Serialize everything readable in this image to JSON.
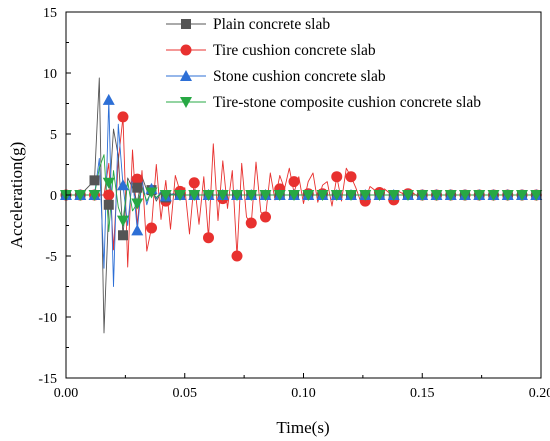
{
  "chart_data": {
    "type": "line",
    "xlabel": "Time(s)",
    "ylabel": "Acceleration(g)",
    "xlim": [
      0,
      0.2
    ],
    "ylim": [
      -15,
      15
    ],
    "xticks": [
      "0.00",
      "0.05",
      "0.10",
      "0.15",
      "0.20"
    ],
    "yticks": [
      "15",
      "10",
      "5",
      "0",
      "-5",
      "-10",
      "-15"
    ],
    "grid": false,
    "legend_position": "top-right",
    "series": [
      {
        "name": "Plain concrete slab",
        "color": "#555555",
        "marker": "square",
        "x": [
          0,
          0.006,
          0.012,
          0.014,
          0.016,
          0.018,
          0.02,
          0.022,
          0.024,
          0.026,
          0.028,
          0.03,
          0.032,
          0.034,
          0.036,
          0.038,
          0.04,
          0.042,
          0.045,
          0.05,
          0.06,
          0.2
        ],
        "y": [
          0,
          0,
          1.2,
          9.6,
          -11.3,
          -0.8,
          5.4,
          3.2,
          -3.3,
          1.4,
          0.6,
          -0.6,
          1.5,
          0.4,
          0.6,
          -0.5,
          0.2,
          -0.3,
          0.1,
          0,
          0,
          0
        ],
        "markers": [
          [
            0.0,
            0
          ],
          [
            0.006,
            0
          ],
          [
            0.012,
            1.2
          ],
          [
            0.018,
            -0.8
          ],
          [
            0.024,
            -3.3
          ],
          [
            0.03,
            0.6
          ],
          [
            0.036,
            0.4
          ],
          [
            0.042,
            -0.2
          ],
          [
            0.048,
            0
          ],
          [
            0.054,
            0
          ]
        ]
      },
      {
        "name": "Tire cushion concrete slab",
        "color": "#e8312f",
        "marker": "circle",
        "x": [
          0,
          0.016,
          0.018,
          0.02,
          0.022,
          0.024,
          0.026,
          0.028,
          0.03,
          0.032,
          0.034,
          0.036,
          0.038,
          0.04,
          0.042,
          0.044,
          0.046,
          0.048,
          0.05,
          0.052,
          0.054,
          0.056,
          0.058,
          0.06,
          0.062,
          0.064,
          0.066,
          0.068,
          0.07,
          0.072,
          0.074,
          0.076,
          0.078,
          0.08,
          0.082,
          0.084,
          0.086,
          0.088,
          0.09,
          0.092,
          0.094,
          0.096,
          0.098,
          0.1,
          0.102,
          0.104,
          0.106,
          0.108,
          0.11,
          0.112,
          0.114,
          0.116,
          0.118,
          0.12,
          0.122,
          0.124,
          0.126,
          0.128,
          0.13,
          0.132,
          0.134,
          0.136,
          0.138,
          0.14,
          0.142,
          0.144,
          0.146,
          0.148,
          0.15,
          0.2
        ],
        "y": [
          0,
          0,
          2.6,
          -4.5,
          2.8,
          6.4,
          -5.9,
          3.7,
          -2.5,
          2.0,
          -4.6,
          -2.7,
          2.5,
          -2.0,
          1.2,
          -2.8,
          1.6,
          0.3,
          0.6,
          -3.2,
          1.1,
          -2.4,
          1.5,
          -3.5,
          4.2,
          -2.1,
          2.8,
          -1.1,
          2.0,
          -5.0,
          2.6,
          -1.8,
          -2.4,
          2.7,
          -1.4,
          -1.8,
          1.8,
          -0.4,
          1.6,
          0.5,
          2.2,
          0.2,
          1.5,
          -0.7,
          1.1,
          1.8,
          -0.6,
          0.8,
          1.1,
          -0.9,
          1.5,
          -0.5,
          2.2,
          1.5,
          0.6,
          -0.5,
          -0.4,
          0.7,
          0.4,
          -0.2,
          0.5,
          0.2,
          -0.4,
          0.3,
          0.1,
          -0.2,
          0.2,
          -0.1,
          0,
          0
        ],
        "markers": [
          [
            0.0,
            0
          ],
          [
            0.006,
            0
          ],
          [
            0.012,
            0
          ],
          [
            0.018,
            0
          ],
          [
            0.024,
            6.4
          ],
          [
            0.03,
            1.3
          ],
          [
            0.036,
            -2.7
          ],
          [
            0.042,
            -0.5
          ],
          [
            0.048,
            0.3
          ],
          [
            0.054,
            1.0
          ],
          [
            0.06,
            -3.5
          ],
          [
            0.066,
            -0.3
          ],
          [
            0.072,
            -5.0
          ],
          [
            0.078,
            -2.3
          ],
          [
            0.084,
            -1.8
          ],
          [
            0.09,
            0.5
          ],
          [
            0.096,
            1.1
          ],
          [
            0.102,
            0.1
          ],
          [
            0.108,
            0.1
          ],
          [
            0.114,
            1.5
          ],
          [
            0.12,
            1.5
          ],
          [
            0.126,
            -0.5
          ],
          [
            0.132,
            0.2
          ],
          [
            0.138,
            -0.4
          ],
          [
            0.144,
            0.1
          ],
          [
            0.15,
            0
          ],
          [
            0.156,
            0
          ],
          [
            0.162,
            0
          ],
          [
            0.168,
            0
          ],
          [
            0.174,
            0
          ],
          [
            0.18,
            0
          ],
          [
            0.186,
            0
          ],
          [
            0.192,
            0
          ],
          [
            0.198,
            0
          ]
        ]
      },
      {
        "name": "Stone cushion concrete slab",
        "color": "#2d6fd6",
        "marker": "triangle-up",
        "x": [
          0,
          0.012,
          0.014,
          0.016,
          0.018,
          0.02,
          0.022,
          0.024,
          0.026,
          0.028,
          0.03,
          0.032,
          0.034,
          0.036,
          0.038,
          0.04,
          0.042,
          0.044,
          0.046,
          0.05,
          0.2
        ],
        "y": [
          0,
          0,
          3.0,
          -6.0,
          7.8,
          -7.5,
          5.8,
          0.8,
          -2.5,
          1.5,
          -2.9,
          1.2,
          -0.8,
          0.5,
          -0.3,
          0.3,
          -0.2,
          0.1,
          0,
          0,
          0
        ],
        "markers": [
          [
            0.0,
            0
          ],
          [
            0.006,
            0
          ],
          [
            0.012,
            0
          ],
          [
            0.018,
            7.8
          ],
          [
            0.024,
            0.8
          ],
          [
            0.03,
            -2.9
          ],
          [
            0.036,
            0.5
          ],
          [
            0.042,
            -0.1
          ],
          [
            0.048,
            0
          ]
        ]
      },
      {
        "name": "Tire-stone composite cushion concrete slab",
        "color": "#27a844",
        "marker": "triangle-down",
        "x": [
          0,
          0.012,
          0.014,
          0.016,
          0.018,
          0.02,
          0.022,
          0.024,
          0.026,
          0.028,
          0.03,
          0.032,
          0.034,
          0.036,
          0.038,
          0.04,
          0.045,
          0.2
        ],
        "y": [
          0,
          0,
          2.2,
          3.3,
          -3.0,
          2.0,
          -1.0,
          -2.1,
          1.1,
          -1.3,
          -0.7,
          0.6,
          -0.5,
          0.3,
          -0.2,
          0.1,
          0,
          0
        ],
        "markers": [
          [
            0.0,
            0
          ],
          [
            0.006,
            0
          ],
          [
            0.012,
            0
          ],
          [
            0.018,
            1.0
          ],
          [
            0.024,
            -2.1
          ],
          [
            0.03,
            -0.7
          ],
          [
            0.036,
            0.2
          ],
          [
            0.042,
            0
          ],
          [
            0.048,
            0
          ]
        ]
      }
    ],
    "common_marker_step": 0.006
  }
}
